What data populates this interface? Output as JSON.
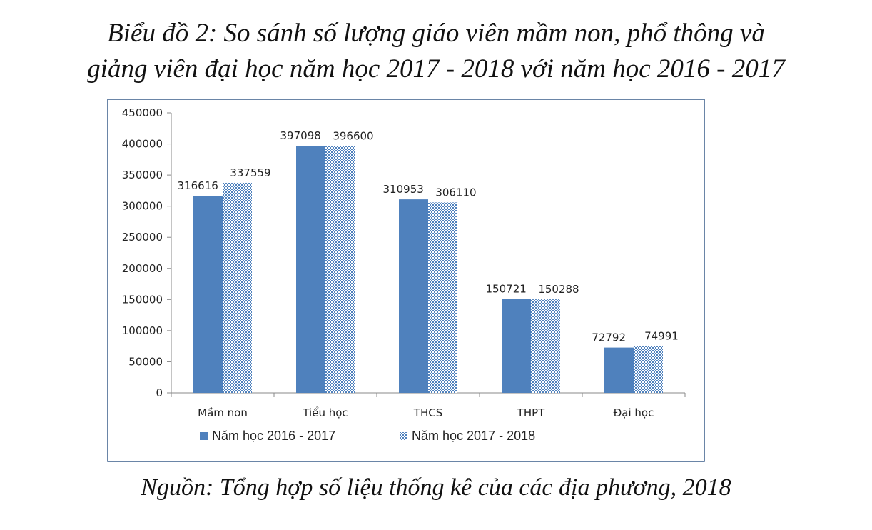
{
  "title_lines": [
    "Biểu đồ 2: So sánh số lượng giáo viên mầm non, phổ thông và",
    "giảng viên đại học năm học 2017 - 2018 với năm học 2016 - 2017"
  ],
  "source": "Nguồn: Tổng hợp số liệu thống kê của các địa phương, 2018",
  "colors": {
    "series1": "#4f81bd",
    "series2_pattern": "#4f81bd",
    "axis": "#888888",
    "frame": "#385d8a"
  },
  "chart_data": {
    "type": "bar",
    "categories": [
      "Mầm non",
      "Tiểu học",
      "THCS",
      "THPT",
      "Đại học"
    ],
    "series": [
      {
        "name": "Năm học 2016 - 2017",
        "values": [
          316616,
          397098,
          310953,
          150721,
          72792
        ],
        "labels": [
          "316616",
          "397098",
          "310953",
          "150721",
          "72792"
        ]
      },
      {
        "name": "Năm học 2017 - 2018",
        "values": [
          337559,
          396600,
          306110,
          150288,
          74991
        ],
        "labels": [
          "337559",
          "396600",
          "306110",
          "150288",
          "74991"
        ]
      }
    ],
    "ylim": [
      0,
      450000
    ],
    "yticks": [
      0,
      50000,
      100000,
      150000,
      200000,
      250000,
      300000,
      350000,
      400000,
      450000
    ],
    "ytick_labels": [
      "0",
      "50000",
      "100000",
      "150000",
      "200000",
      "250000",
      "300000",
      "350000",
      "400000",
      "450000"
    ],
    "grid": false,
    "legend_position": "bottom"
  }
}
